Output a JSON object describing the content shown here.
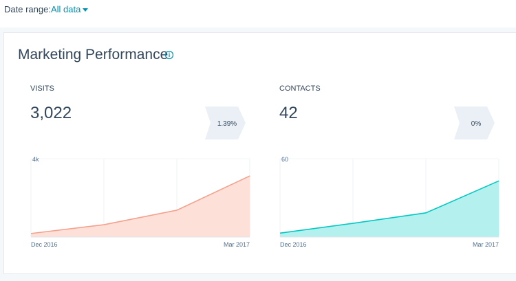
{
  "filter": {
    "label": "Date range:",
    "value": "All data"
  },
  "card": {
    "title": "Marketing Performance"
  },
  "chart_data": [
    {
      "type": "area",
      "title": "VISITS",
      "total": "3,022",
      "change": "1.39%",
      "categories": [
        "Dec 2016",
        null,
        null,
        "Mar 2017"
      ],
      "values": [
        180,
        630,
        1370,
        3120
      ],
      "color": "#f5a08c",
      "fill_color": "#fde0d8",
      "ylim": [
        0,
        4000
      ],
      "yticks": [
        {
          "value": 4000,
          "label": "4k"
        }
      ]
    },
    {
      "type": "area",
      "title": "CONTACTS",
      "total": "42",
      "change": "0%",
      "categories": [
        "Dec 2016",
        null,
        null,
        "Mar 2017"
      ],
      "values": [
        3,
        10.5,
        18.5,
        43
      ],
      "color": "#00c9c4",
      "fill_color": "#b3f0ee",
      "ylim": [
        0,
        60
      ],
      "yticks": [
        60
      ]
    }
  ]
}
